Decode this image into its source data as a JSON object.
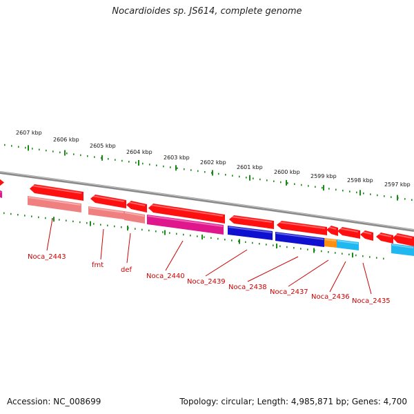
{
  "title": "Nocardioides sp. JS614, complete genome",
  "accession": "Accession: NC_008699",
  "summary": "Topology: circular; Length: 4,985,871 bp; Genes: 4,700",
  "ruler_labels": [
    "2607 kbp",
    "2606 kbp",
    "2605 kbp",
    "2604 kbp",
    "2603 kbp",
    "2602 kbp",
    "2601 kbp",
    "2600 kbp",
    "2599 kbp",
    "2598 kbp",
    "2597 kbp"
  ],
  "gene_labels": [
    "Noca_2443",
    "fmt",
    "def",
    "Noca_2440",
    "Noca_2439",
    "Noca_2438",
    "Noca_2437",
    "Noca_2436",
    "Noca_2435"
  ],
  "colors": {
    "backbone": "#8a8a8a",
    "ticks": "#1a8a1a",
    "label_text": "#cc0000",
    "gene_red": "#ff1010",
    "gene_salmon": "#f08080",
    "gene_magenta": "#e0168c",
    "gene_blue": "#1010d0",
    "gene_orange": "#ff9010",
    "gene_cyan": "#20b8f0"
  }
}
